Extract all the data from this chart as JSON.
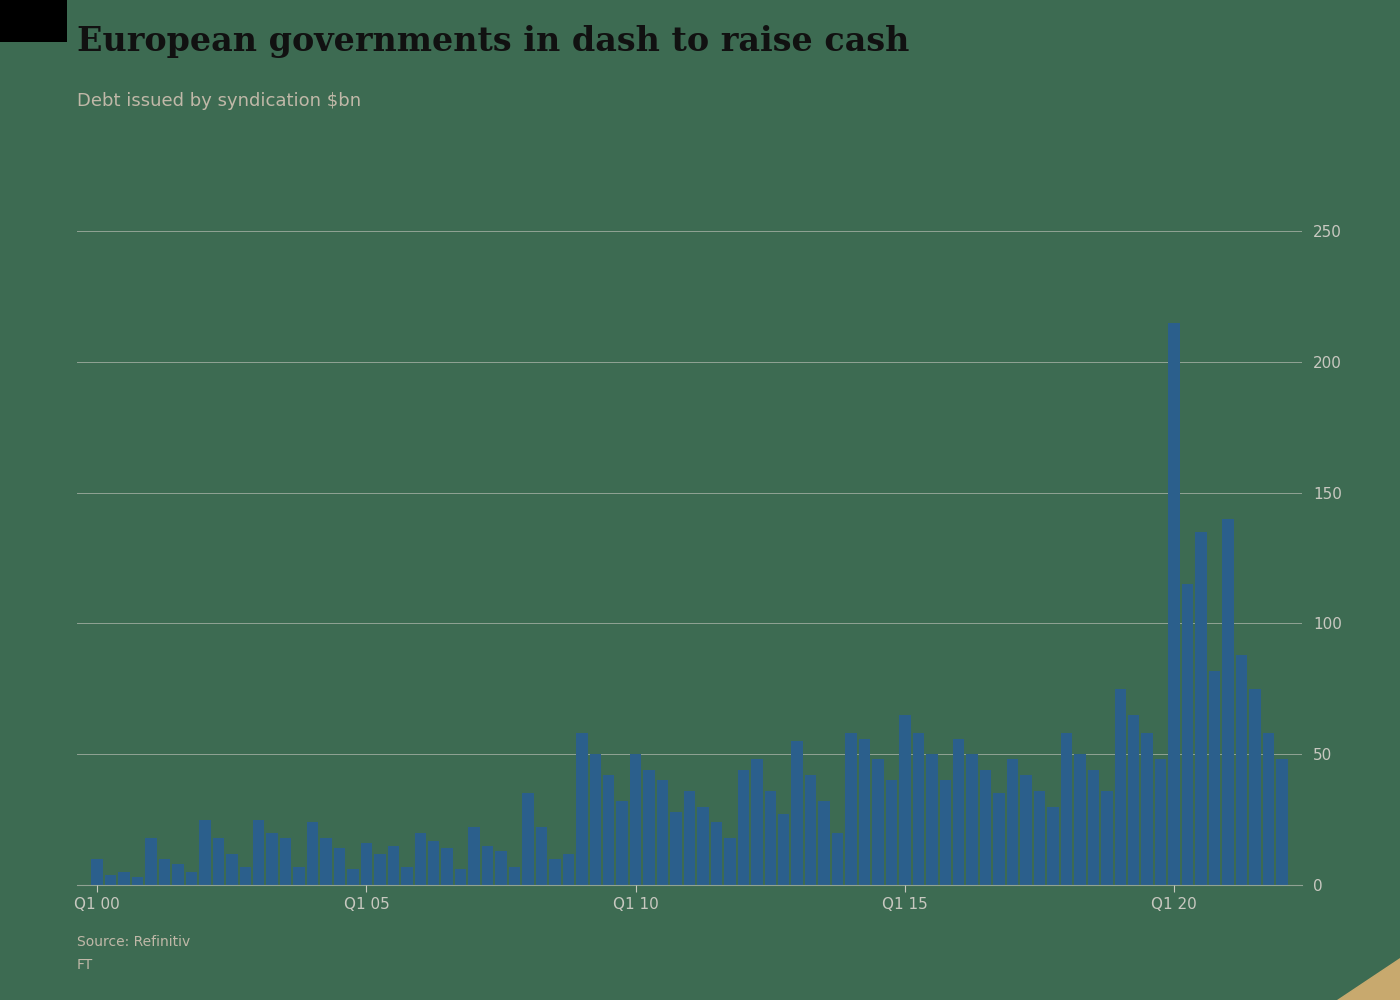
{
  "title": "European governments in dash to raise cash",
  "subtitle": "Debt issued by syndication $bn",
  "source_line1": "Source: Refinitiv",
  "source_line2": "FT",
  "bar_color": "#2b5f8c",
  "bg_color": "#3d6b52",
  "grid_color": "#c8c8c0",
  "tick_color": "#c8c8c0",
  "text_color": "#e8e0d0",
  "title_color": "#1a1a1a",
  "subtitle_color": "#c0b8a8",
  "ylim": [
    0,
    260
  ],
  "yticks": [
    0,
    50,
    100,
    150,
    200,
    250
  ],
  "xtick_positions": [
    0,
    20,
    40,
    60,
    80
  ],
  "xtick_labels": [
    "Q1 00",
    "Q1 05",
    "Q1 10",
    "Q1 15",
    "Q1 20"
  ],
  "values": [
    10,
    4,
    5,
    3,
    18,
    10,
    8,
    5,
    25,
    18,
    12,
    7,
    25,
    20,
    18,
    7,
    24,
    18,
    14,
    6,
    16,
    12,
    15,
    7,
    20,
    17,
    14,
    6,
    22,
    15,
    13,
    7,
    35,
    22,
    10,
    12,
    58,
    50,
    42,
    32,
    50,
    44,
    40,
    28,
    36,
    30,
    24,
    18,
    44,
    48,
    36,
    27,
    55,
    42,
    32,
    20,
    58,
    56,
    48,
    40,
    65,
    58,
    50,
    40,
    56,
    50,
    44,
    35,
    48,
    42,
    36,
    30,
    58,
    50,
    44,
    36,
    75,
    65,
    58,
    48,
    215,
    115,
    135,
    82,
    140,
    88,
    75,
    58,
    48
  ]
}
